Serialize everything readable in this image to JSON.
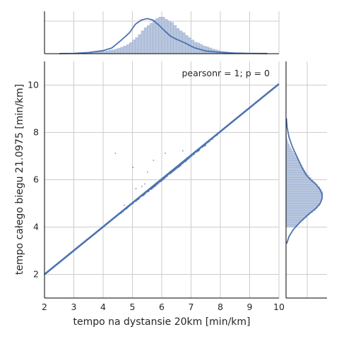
{
  "chart_data": {
    "type": "scatter",
    "kind": "jointplot",
    "xlabel": "tempo na dystansie 20km [min/km]",
    "ylabel": "tempo całego biegu 21.0975 [min/km]",
    "xlim": [
      2,
      10
    ],
    "ylim": [
      1,
      11
    ],
    "xticks": [
      "2",
      "3",
      "4",
      "5",
      "6",
      "7",
      "8",
      "9",
      "10"
    ],
    "yticks": [
      "2",
      "4",
      "6",
      "8",
      "10"
    ],
    "annotation": "pearsonr = 1; p = 0",
    "grid": true,
    "legend": "none",
    "regression_line": {
      "x": [
        2,
        10
      ],
      "y": [
        2,
        10.05
      ]
    },
    "scatter_cluster": {
      "x_range": [
        4.3,
        8.3
      ],
      "note": "dense points along y = x"
    },
    "outliers": [
      {
        "x": 4.42,
        "y": 7.12
      },
      {
        "x": 5.02,
        "y": 6.52
      },
      {
        "x": 5.12,
        "y": 5.62
      },
      {
        "x": 5.32,
        "y": 5.72
      },
      {
        "x": 5.52,
        "y": 6.32
      },
      {
        "x": 5.72,
        "y": 6.82
      },
      {
        "x": 6.12,
        "y": 7.12
      },
      {
        "x": 6.72,
        "y": 7.22
      },
      {
        "x": 4.72,
        "y": 4.92
      },
      {
        "x": 5.42,
        "y": 5.82
      }
    ],
    "x_marginal": {
      "kde_x": [
        2.5,
        3.0,
        3.5,
        4.0,
        4.3,
        4.6,
        4.9,
        5.1,
        5.3,
        5.5,
        5.7,
        5.9,
        6.1,
        6.3,
        6.5,
        6.8,
        7.1,
        7.5,
        8.0,
        8.5,
        9.0,
        9.6
      ],
      "kde_y": [
        0.002,
        0.008,
        0.03,
        0.08,
        0.15,
        0.34,
        0.55,
        0.77,
        0.88,
        0.92,
        0.88,
        0.75,
        0.6,
        0.46,
        0.38,
        0.28,
        0.16,
        0.07,
        0.035,
        0.015,
        0.008,
        0.003
      ],
      "bins_from": 3.5,
      "bin_width": 0.1,
      "counts": [
        0.02,
        0.03,
        0.03,
        0.04,
        0.05,
        0.06,
        0.07,
        0.09,
        0.1,
        0.12,
        0.14,
        0.17,
        0.2,
        0.24,
        0.29,
        0.36,
        0.42,
        0.5,
        0.6,
        0.68,
        0.74,
        0.8,
        0.88,
        0.92,
        0.96,
        0.96,
        0.9,
        0.86,
        0.82,
        0.74,
        0.66,
        0.6,
        0.55,
        0.48,
        0.42,
        0.36,
        0.3,
        0.28,
        0.24,
        0.2,
        0.18,
        0.15,
        0.12,
        0.1,
        0.08,
        0.06,
        0.05,
        0.04,
        0.03,
        0.02,
        0.02,
        0.02,
        0.01,
        0.01,
        0.01
      ]
    },
    "y_marginal": {
      "kde_y": [
        3.3,
        3.6,
        3.9,
        4.2,
        4.5,
        4.8,
        5.0,
        5.2,
        5.4,
        5.6,
        5.8,
        6.0,
        6.2,
        6.5,
        6.8,
        7.1,
        7.4,
        7.8,
        8.2,
        8.6
      ],
      "kde_x": [
        0.02,
        0.08,
        0.2,
        0.38,
        0.58,
        0.82,
        0.93,
        0.98,
        0.98,
        0.92,
        0.82,
        0.67,
        0.55,
        0.44,
        0.35,
        0.26,
        0.17,
        0.08,
        0.03,
        0.01
      ],
      "bins_from": 4.0,
      "bin_width": 0.1,
      "counts": [
        0.28,
        0.34,
        0.4,
        0.48,
        0.56,
        0.64,
        0.72,
        0.8,
        0.86,
        0.92,
        0.94,
        0.96,
        0.98,
        1.0,
        1.0,
        0.96,
        0.92,
        0.86,
        0.8,
        0.74,
        0.68,
        0.62,
        0.56,
        0.52,
        0.48,
        0.44,
        0.4,
        0.36,
        0.32,
        0.28,
        0.24,
        0.2,
        0.16,
        0.12,
        0.09,
        0.06,
        0.04,
        0.02,
        0.01,
        0.01
      ]
    },
    "colors": {
      "line": "#4c72b0",
      "bar_fill": "#b9c7de",
      "bar_edge": "#90a6cc",
      "grid": "#cccccc",
      "text": "#262626"
    }
  }
}
